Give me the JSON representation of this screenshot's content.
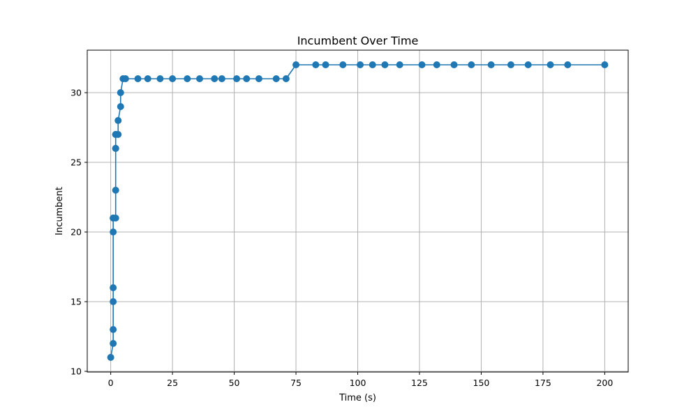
{
  "chart_data": {
    "type": "line",
    "title": "Incumbent Over Time",
    "xlabel": "Time (s)",
    "ylabel": "Incumbent",
    "xlim": [
      -9.5,
      209.5
    ],
    "ylim": [
      9.95,
      33.05
    ],
    "x_ticks": [
      0,
      25,
      50,
      75,
      100,
      125,
      150,
      175,
      200
    ],
    "y_ticks": [
      10,
      15,
      20,
      25,
      30
    ],
    "grid": true,
    "markers": true,
    "colors": {
      "series": "#1f77b4"
    },
    "series": [
      {
        "x": [
          0,
          1,
          1,
          1,
          1,
          1,
          1,
          1,
          2,
          2,
          2,
          2,
          2,
          2,
          3,
          3,
          4,
          4,
          5,
          6,
          11,
          15,
          20,
          25,
          31,
          36,
          42,
          45,
          51,
          55,
          60,
          67,
          71,
          75,
          83,
          87,
          94,
          101,
          106,
          111,
          117,
          126,
          132,
          139,
          146,
          154,
          162,
          169,
          178,
          185,
          200
        ],
        "y": [
          11,
          12,
          13,
          15,
          16,
          20,
          21,
          21,
          21,
          23,
          26,
          26,
          27,
          27,
          27,
          28,
          29,
          30,
          31,
          31,
          31,
          31,
          31,
          31,
          31,
          31,
          31,
          31,
          31,
          31,
          31,
          31,
          31,
          32,
          32,
          32,
          32,
          32,
          32,
          32,
          32,
          32,
          32,
          32,
          32,
          32,
          32,
          32,
          32,
          32,
          32
        ]
      }
    ]
  }
}
